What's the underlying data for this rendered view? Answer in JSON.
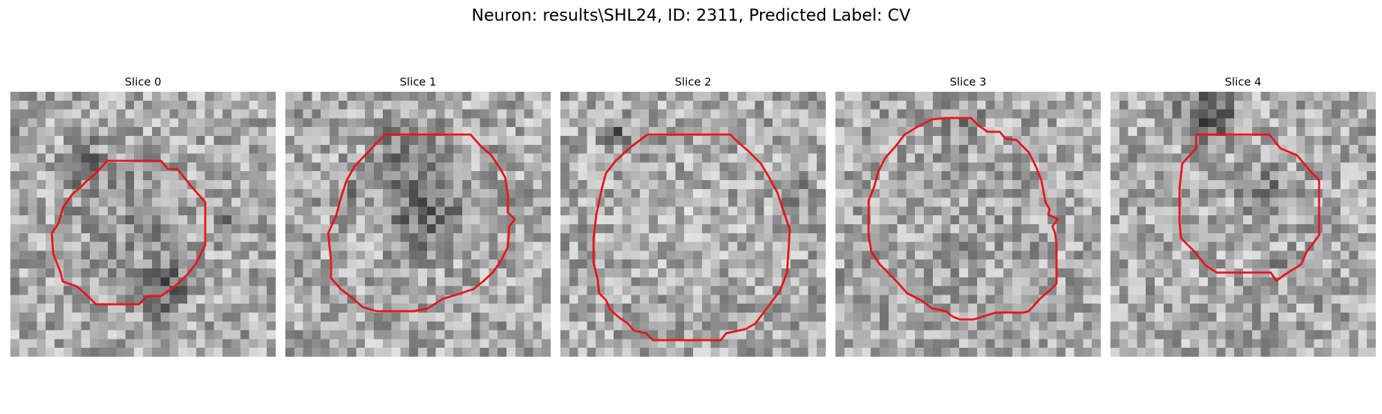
{
  "figure": {
    "title": "Neuron: results\\SHL24, ID: 2311, Predicted Label: CV"
  },
  "contour_color": "#e8141c",
  "panels": [
    {
      "label": "Slice 0"
    },
    {
      "label": "Slice 1"
    },
    {
      "label": "Slice 2"
    },
    {
      "label": "Slice 3"
    },
    {
      "label": "Slice 4"
    }
  ]
}
